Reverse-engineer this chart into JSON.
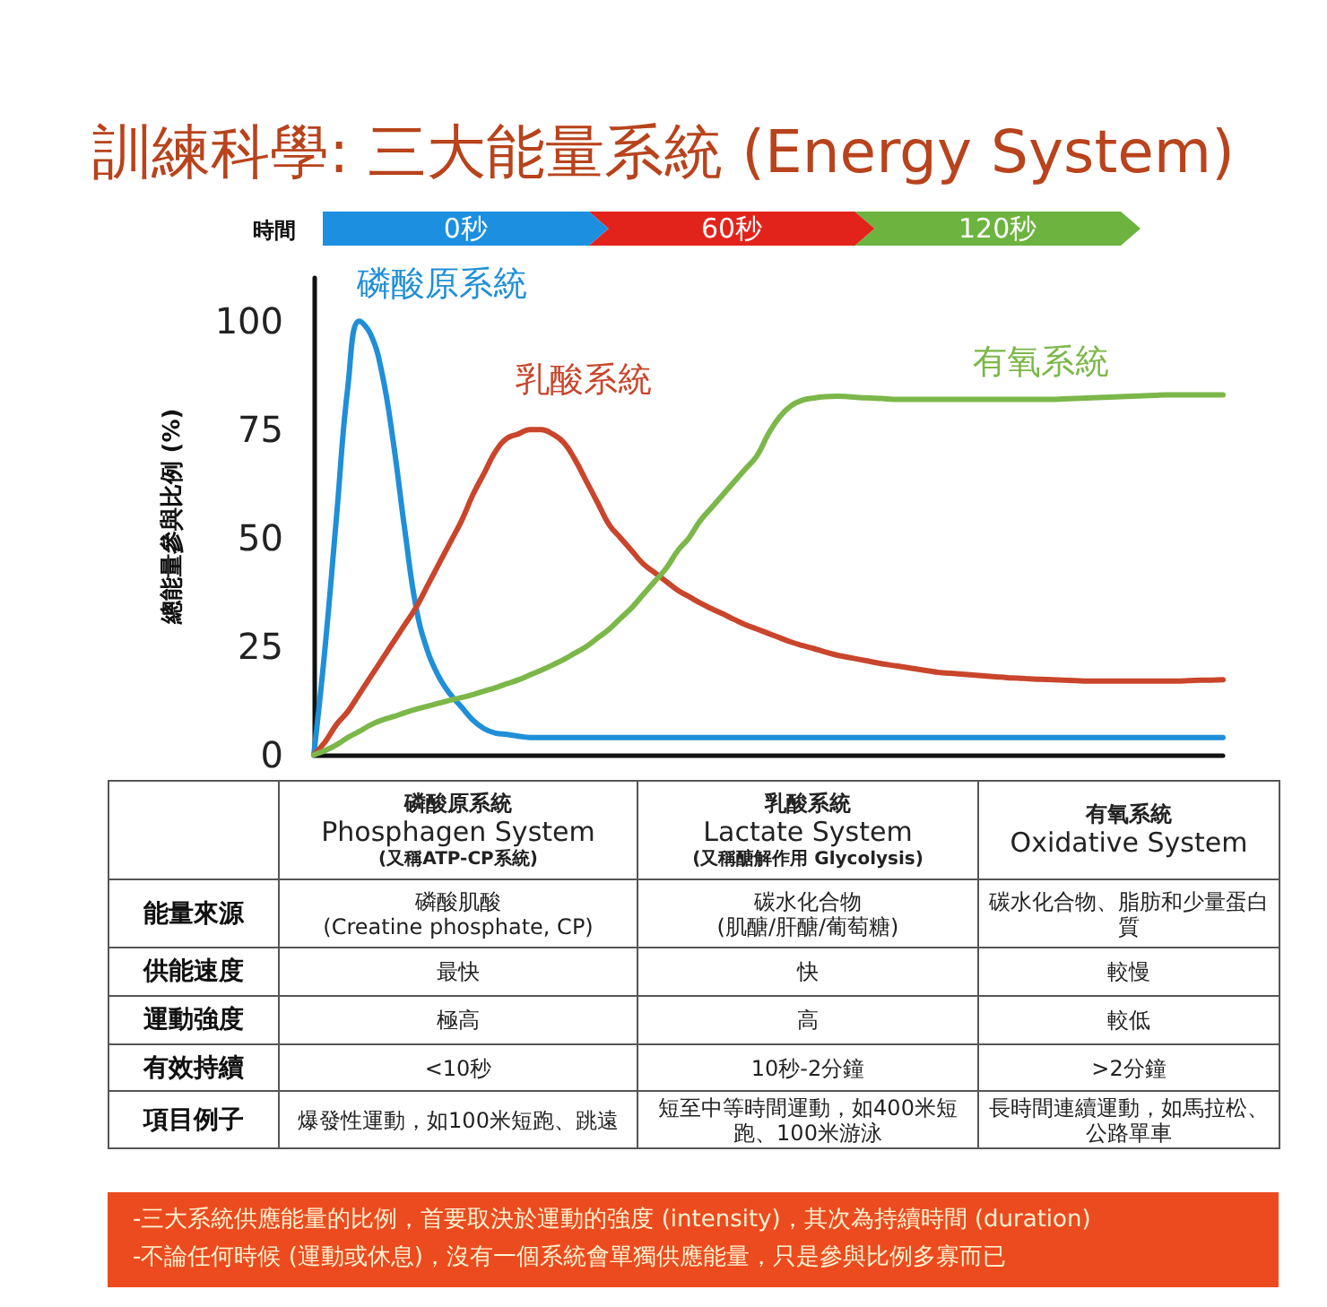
{
  "chart_data": [
    {
      "type": "line",
      "title": "訓練科學: 三大能量系統 (Energy System)",
      "xlabel": "時間",
      "ylabel": "總能量參與比例 (%)",
      "annotations": [
        "0秒",
        "60秒",
        "120秒"
      ],
      "categories": [
        null,
        null,
        null,
        null,
        null,
        null,
        null,
        null,
        null,
        null,
        null,
        null,
        null,
        null,
        null,
        null,
        null,
        null,
        null,
        null,
        null,
        null,
        null,
        null,
        null,
        null,
        null,
        null,
        null,
        null,
        null,
        null,
        null,
        null,
        null,
        null,
        null,
        null,
        null,
        null,
        null,
        null,
        null,
        null,
        null,
        null,
        null,
        null,
        null,
        null,
        null,
        null,
        null,
        null,
        null,
        null,
        null,
        null,
        null,
        null,
        null,
        null,
        null,
        null,
        null,
        null,
        null,
        null,
        null,
        null,
        null,
        null,
        null,
        null,
        null,
        null,
        null,
        null,
        null,
        null,
        null
      ],
      "series": [
        {
          "name": "磷酸原系統",
          "color": "#1f8fd8",
          "values": [
            0,
            25,
            55,
            85,
            100,
            97,
            88,
            72,
            52,
            34,
            24,
            18,
            14,
            11,
            8,
            6,
            5,
            4.7,
            4.3,
            4,
            4,
            4,
            4,
            4,
            4,
            4,
            4,
            4,
            4,
            4,
            4,
            4,
            4,
            4,
            4,
            4,
            4,
            4,
            4,
            4,
            4,
            4,
            4,
            4,
            4,
            4,
            4,
            4,
            4,
            4,
            4,
            4,
            4,
            4,
            4,
            4,
            4,
            4,
            4,
            4,
            4,
            4,
            4,
            4,
            4,
            4,
            4,
            4,
            4,
            4,
            4,
            4,
            4,
            4,
            4,
            4,
            4,
            4,
            4,
            4,
            4
          ]
        },
        {
          "name": "乳酸系統",
          "color": "#c9452b",
          "values": [
            0,
            3,
            7,
            10,
            14,
            18,
            22,
            26,
            30,
            34,
            39,
            44,
            49,
            54,
            60,
            65,
            70,
            73,
            74,
            75,
            75,
            74,
            72,
            68,
            63,
            58,
            53,
            50,
            47,
            44,
            42,
            40,
            38,
            36.5,
            35,
            33.7,
            32.5,
            31.2,
            30,
            29,
            28,
            27,
            26,
            25.2,
            24.5,
            23.7,
            23,
            22.5,
            22,
            21.5,
            21,
            20.6,
            20.2,
            19.8,
            19.4,
            19,
            18.8,
            18.6,
            18.4,
            18.2,
            18,
            17.8,
            17.7,
            17.5,
            17.4,
            17.3,
            17.2,
            17.1,
            17,
            17,
            17,
            17,
            17,
            17,
            17,
            17,
            17,
            17.1,
            17.2,
            17.2,
            17.3
          ]
        },
        {
          "name": "有氧系統",
          "color": "#7cb749",
          "values": [
            0,
            1,
            2.3,
            4,
            5.4,
            6.9,
            8,
            8.8,
            9.7,
            10.5,
            11.2,
            11.9,
            12.6,
            13.2,
            13.9,
            14.7,
            15.5,
            16.4,
            17.3,
            18.4,
            19.5,
            20.7,
            22,
            23.5,
            25,
            27,
            29,
            31.5,
            34,
            37,
            40,
            43,
            47,
            50,
            54,
            57,
            60,
            63,
            66,
            69,
            74,
            78,
            80.5,
            81.8,
            82.3,
            82.6,
            82.7,
            82.6,
            82.4,
            82.3,
            82.2,
            82,
            82,
            82,
            82,
            82,
            82,
            82,
            82,
            82,
            82,
            82,
            82,
            82,
            82,
            82,
            82.1,
            82.2,
            82.3,
            82.4,
            82.5,
            82.6,
            82.7,
            82.8,
            82.9,
            83,
            83,
            83,
            83,
            83,
            83
          ]
        }
      ],
      "ylim": [
        0,
        110
      ],
      "yticks": [
        0,
        25,
        50,
        75,
        100
      ],
      "grid": false,
      "legend": false,
      "marker": "none",
      "line_style": "solid",
      "tick_labels": "y"
    },
    {
      "type": "other",
      "categories": [
        "磷酸原系統\nPhosphagen System\n(又稱ATP-CP系統)",
        "乳酸系統\nLactate System\n(又稱醣解作用 Glycolysis)",
        "有氧系統\nOxidative System"
      ],
      "y_categories": [
        "能量來源",
        "供能速度",
        "運動強度",
        "有效持續",
        "項目例子"
      ],
      "cell_labels": [
        [
          "磷酸肌酸\n(Creatine phosphate, CP)",
          "碳水化合物\n(肌醣/肝醣/葡萄糖)",
          "碳水化合物、脂肪和少量蛋白質"
        ],
        [
          "最快",
          "快",
          "較慢"
        ],
        [
          "極高",
          "高",
          "較低"
        ],
        [
          "<10秒",
          "10秒-2分鐘",
          ">2分鐘"
        ],
        [
          "爆發性運動，如100米短跑、跳遠",
          "短至中等時間運動，如400米短跑、100米游泳",
          "長時間連續運動，如馬拉松、公路單車"
        ]
      ]
    },
    {
      "type": "other",
      "annotations": [
        "-三大系統供應能量的比例，首要取決於運動的強度 (intensity)，其次為持續時間 (duration)",
        "-不論任何時候 (運動或休息)，沒有一個系統會單獨供應能量，只是參與比例多寡而已"
      ]
    }
  ]
}
